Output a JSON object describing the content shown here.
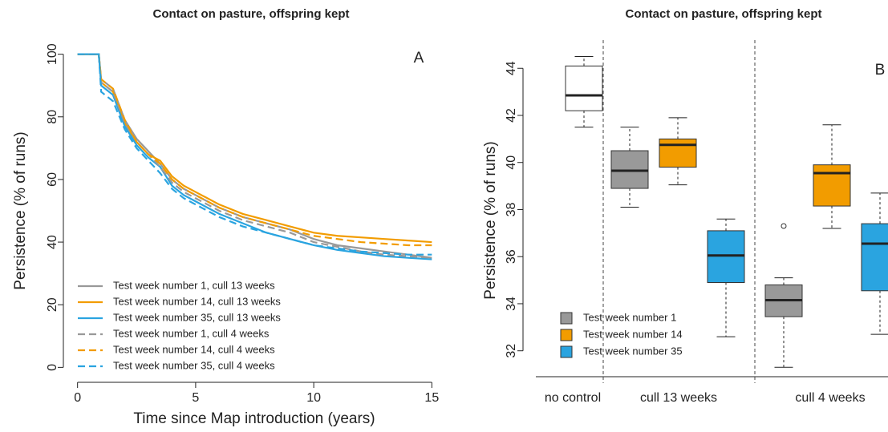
{
  "chart_data": [
    {
      "type": "line",
      "title": "Contact on pasture, offspring kept",
      "annotation": "A",
      "xlabel": "Time since Map introduction (years)",
      "ylabel": "Persistence (% of runs)",
      "x": [
        0,
        0.9,
        1,
        1.5,
        2,
        2.5,
        3,
        3.5,
        4,
        4.5,
        5,
        6,
        7,
        8,
        9,
        10,
        11,
        12,
        13,
        14,
        15
      ],
      "series": [
        {
          "name": "Test week number 1, cull 13 weeks",
          "color": "#999999",
          "dashed": false,
          "values": [
            100,
            100,
            92,
            89,
            79,
            73,
            69,
            65,
            60,
            57,
            55,
            51,
            48,
            46,
            44,
            41,
            39,
            38,
            37,
            36,
            35
          ]
        },
        {
          "name": "Test week number 14, cull 13 weeks",
          "color": "#f29c00",
          "dashed": false,
          "values": [
            100,
            100,
            91,
            88,
            78,
            72,
            68,
            66,
            61,
            58,
            56,
            52,
            49,
            47,
            45,
            43,
            42,
            41.5,
            41,
            40.5,
            40
          ]
        },
        {
          "name": "Test week number 35, cull 13 weeks",
          "color": "#2aa4e0",
          "dashed": false,
          "values": [
            100,
            100,
            90,
            87,
            77,
            71,
            67,
            64,
            58,
            55,
            53,
            49,
            46,
            43,
            41,
            39,
            37.5,
            36.5,
            35.5,
            35,
            34.5
          ]
        },
        {
          "name": "Test week number 1, cull 4 weeks",
          "color": "#999999",
          "dashed": true,
          "values": [
            100,
            100,
            91,
            88,
            78,
            72,
            68,
            64,
            59,
            56,
            54,
            50,
            47,
            45,
            43,
            40,
            38.5,
            37,
            36,
            35.5,
            35
          ]
        },
        {
          "name": "Test week number 14, cull 4 weeks",
          "color": "#f29c00",
          "dashed": true,
          "values": [
            100,
            100,
            92,
            89,
            79,
            72,
            68,
            65,
            60,
            57,
            55,
            51,
            48,
            46,
            44,
            42,
            41,
            40,
            39.5,
            39,
            39
          ]
        },
        {
          "name": "Test week number 35, cull 4 weeks",
          "color": "#2aa4e0",
          "dashed": true,
          "values": [
            100,
            100,
            88,
            85,
            76,
            70,
            66,
            62,
            57,
            54,
            52,
            48,
            45,
            43,
            41,
            39,
            38,
            37,
            36.5,
            36,
            36
          ]
        }
      ],
      "xlim": [
        -0.6,
        15.6
      ],
      "ylim": [
        -4,
        104
      ],
      "xticks": [
        0,
        5,
        10,
        15
      ],
      "yticks": [
        0,
        20,
        40,
        60,
        80,
        100
      ],
      "legend": "bottom-left"
    },
    {
      "type": "box",
      "title": "Contact on pasture, offspring kept",
      "annotation": "B",
      "ylabel": "Persistence (% of runs)",
      "categories": [
        "no control",
        "cull 13 weeks",
        "cull 4 weeks"
      ],
      "control": {
        "color": "#ffffff",
        "min": 41.5,
        "q1": 42.2,
        "median": 42.85,
        "q3": 44.1,
        "max": 44.5
      },
      "series": [
        {
          "name": "Test week number 1",
          "color": "#999999",
          "boxes": [
            {
              "min": 38.1,
              "q1": 38.9,
              "median": 39.65,
              "q3": 40.5,
              "max": 41.5
            },
            {
              "min": 31.3,
              "q1": 33.45,
              "median": 34.15,
              "q3": 34.8,
              "max": 35.1,
              "outliers": [
                37.3
              ]
            }
          ]
        },
        {
          "name": "Test week number 14",
          "color": "#f29c00",
          "boxes": [
            {
              "min": 39.05,
              "q1": 39.8,
              "median": 40.75,
              "q3": 41.0,
              "max": 41.9
            },
            {
              "min": 37.2,
              "q1": 38.15,
              "median": 39.55,
              "q3": 39.9,
              "max": 41.6
            }
          ]
        },
        {
          "name": "Test week number 35",
          "color": "#2aa4e0",
          "boxes": [
            {
              "min": 32.6,
              "q1": 34.9,
              "median": 36.05,
              "q3": 37.1,
              "max": 37.6
            },
            {
              "min": 32.7,
              "q1": 34.55,
              "median": 36.55,
              "q3": 37.4,
              "max": 38.7
            }
          ]
        }
      ],
      "ylim": [
        30.9,
        45.2
      ],
      "yticks": [
        32,
        34,
        36,
        38,
        40,
        42,
        44
      ],
      "legend": "bottom-left"
    }
  ]
}
